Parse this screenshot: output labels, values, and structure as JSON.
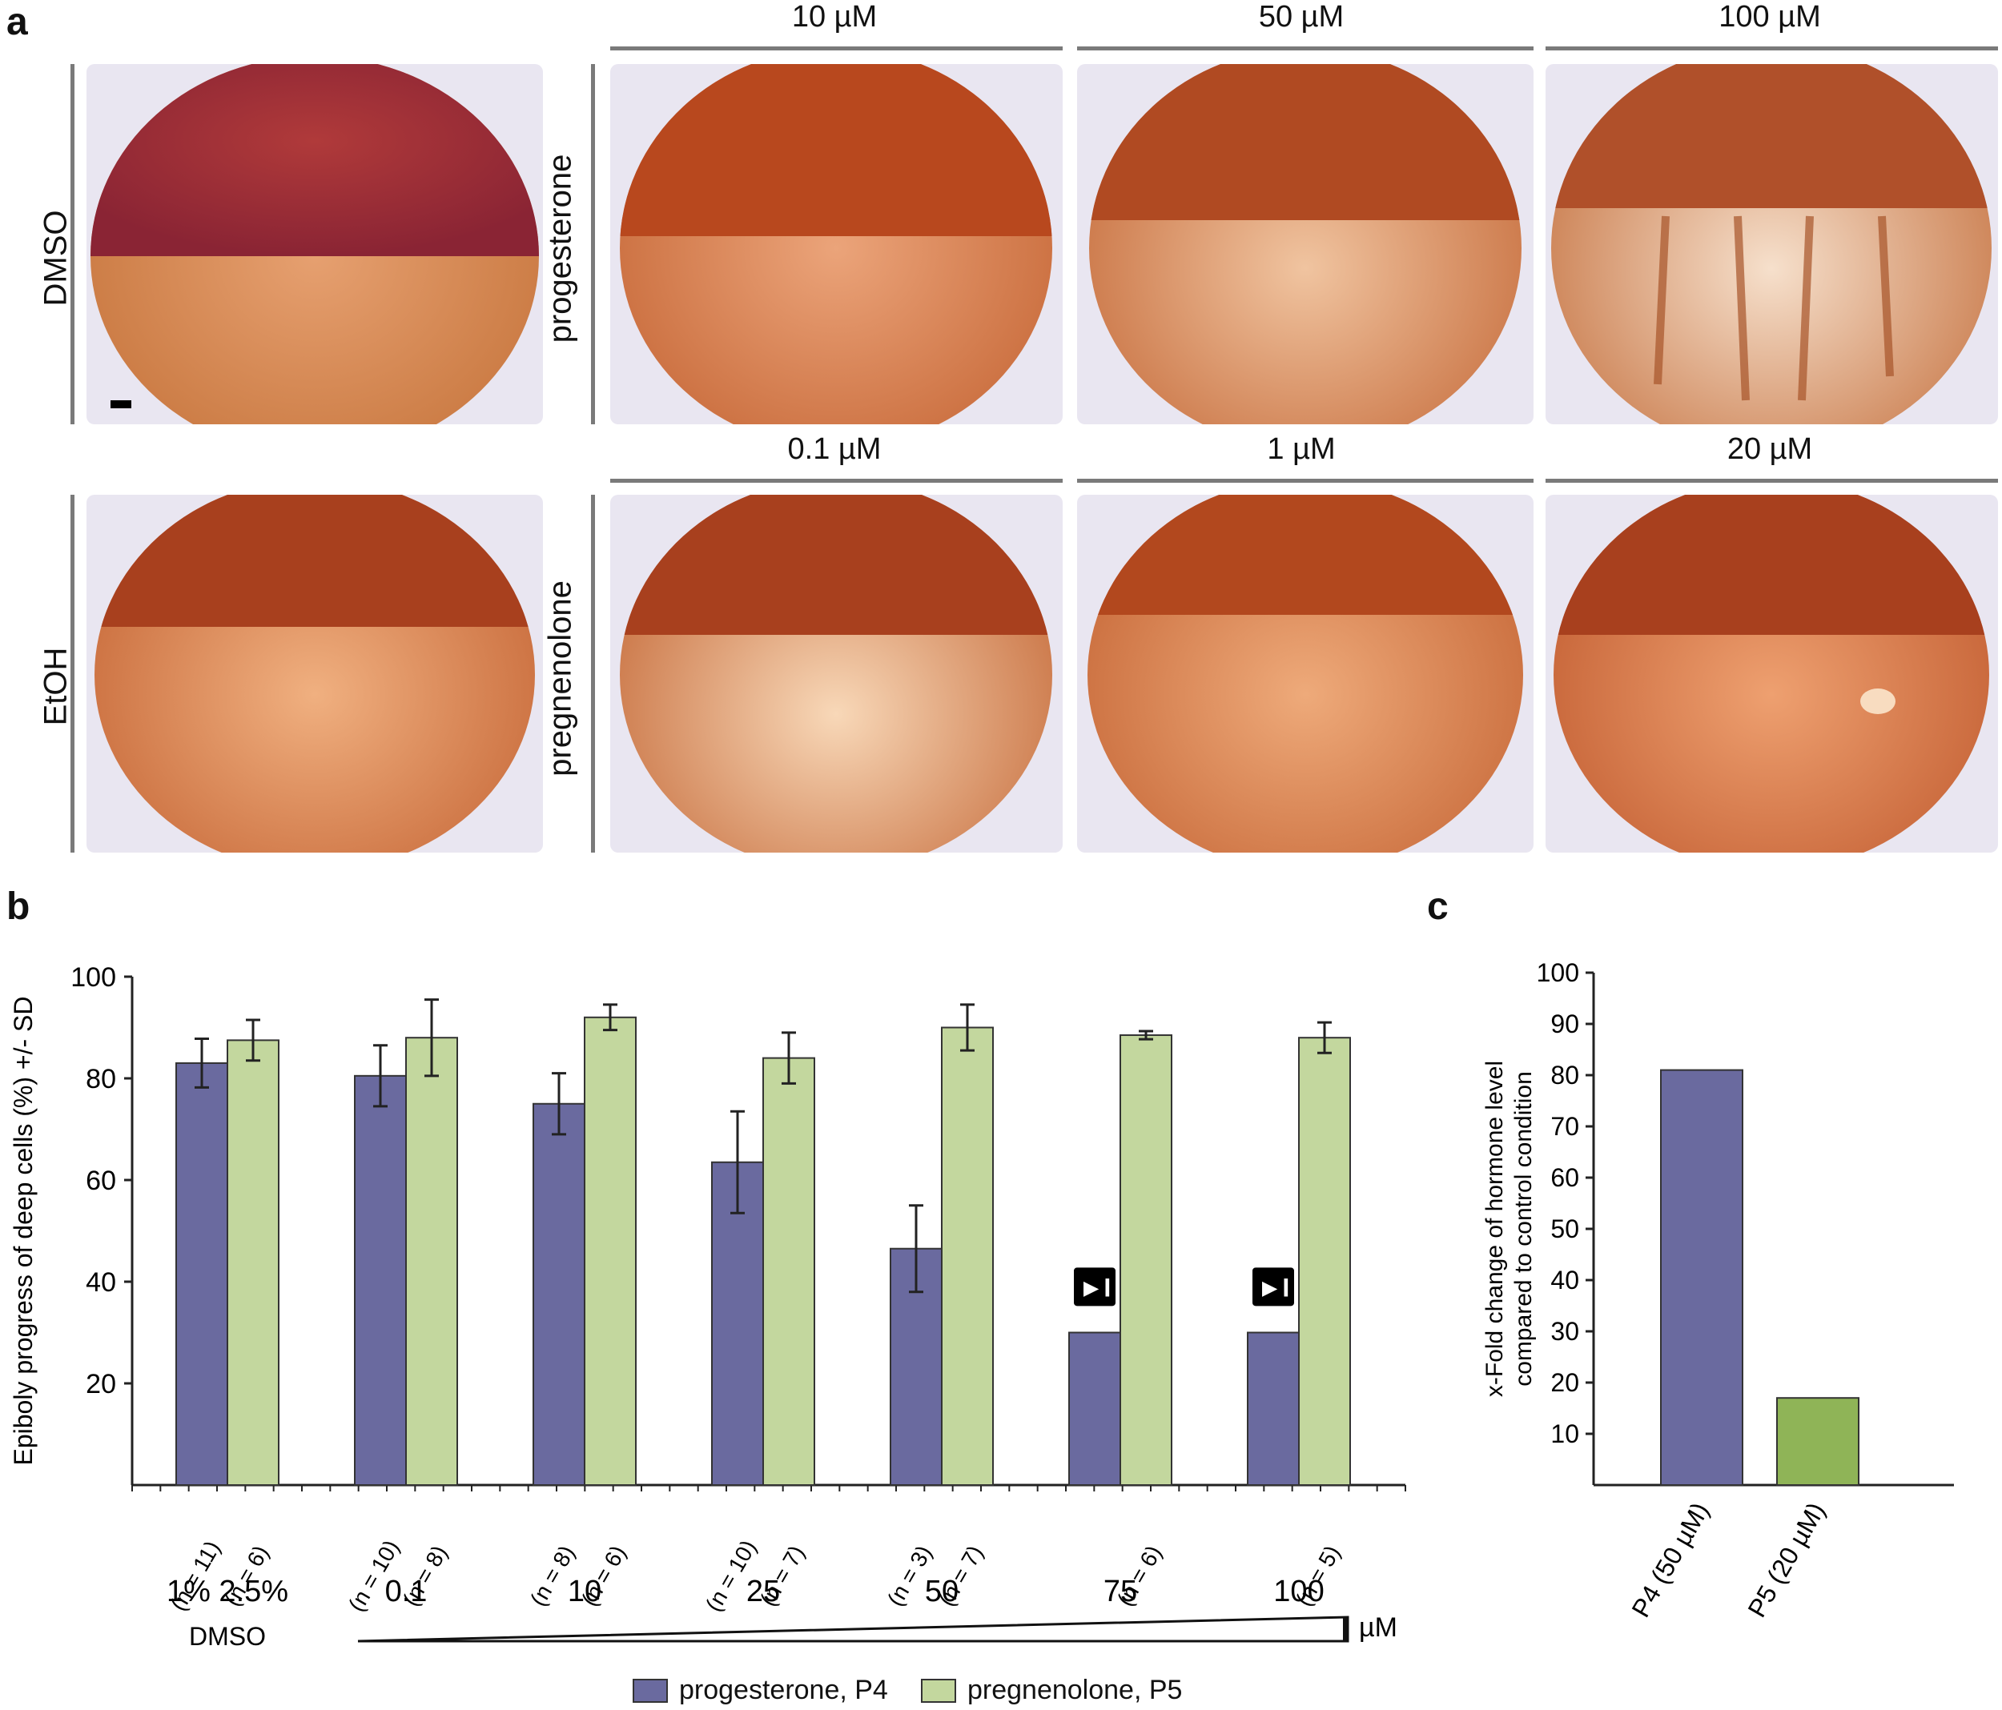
{
  "panel_a": {
    "letter": "a",
    "row1": {
      "control_label": "DMSO",
      "treatment_label": "progesterone",
      "concentrations": [
        "10 µM",
        "50 µM",
        "100 µM"
      ]
    },
    "row2": {
      "control_label": "EtOH",
      "treatment_label": "pregnenolone",
      "concentrations": [
        "0.1 µM",
        "1 µM",
        "20 µM"
      ]
    }
  },
  "panel_b": {
    "letter": "b"
  },
  "panel_c": {
    "letter": "c"
  },
  "colors": {
    "p4": "#6a6a9f",
    "p5": "#c3d79e",
    "p5_c": "#8fb457"
  },
  "chart_data": [
    {
      "type": "bar",
      "ylabel": "Epiboly progress of deep cells (%) +/- SD",
      "ylim": [
        0,
        100
      ],
      "yticks": [
        "20",
        "40",
        "60",
        "80",
        "100"
      ],
      "categories": [
        "1% 2.5%",
        "0.1",
        "10",
        "25",
        "50",
        "75",
        "100"
      ],
      "group_label": "DMSO",
      "unit_label": "µM",
      "series": [
        {
          "name": "progesterone, P4",
          "values": [
            83,
            80.5,
            75,
            63.5,
            46.5,
            30,
            30
          ],
          "errors": [
            4.8,
            6,
            6,
            10,
            8.5,
            null,
            null
          ],
          "n_labels": [
            "(n = 11)",
            "(n = 10)",
            "(n = 8)",
            "(n = 10)",
            "(n = 3)",
            "",
            ""
          ]
        },
        {
          "name": "pregnenolone, P5",
          "values": [
            87.5,
            88,
            92,
            84,
            90,
            88.5,
            88
          ],
          "errors": [
            4,
            7.5,
            2.5,
            5,
            4.5,
            0.8,
            3
          ],
          "n_labels": [
            "(n = 6)",
            "(n = 8)",
            "(n = 6)",
            "(n = 7)",
            "(n = 7)",
            "(n = 6)",
            "(n = 5)"
          ]
        }
      ],
      "markers": [
        {
          "category": "75",
          "symbol": "►I"
        },
        {
          "category": "100",
          "symbol": "►I"
        }
      ]
    },
    {
      "type": "bar",
      "ylabel": "x-Fold change of hormone level compared to control condition",
      "ylim": [
        0,
        100
      ],
      "yticks": [
        "10",
        "20",
        "30",
        "40",
        "50",
        "60",
        "70",
        "80",
        "90",
        "100"
      ],
      "categories": [
        "P4 (50 µM)",
        "P5 (20 µM)"
      ],
      "values": [
        81,
        17
      ]
    }
  ]
}
